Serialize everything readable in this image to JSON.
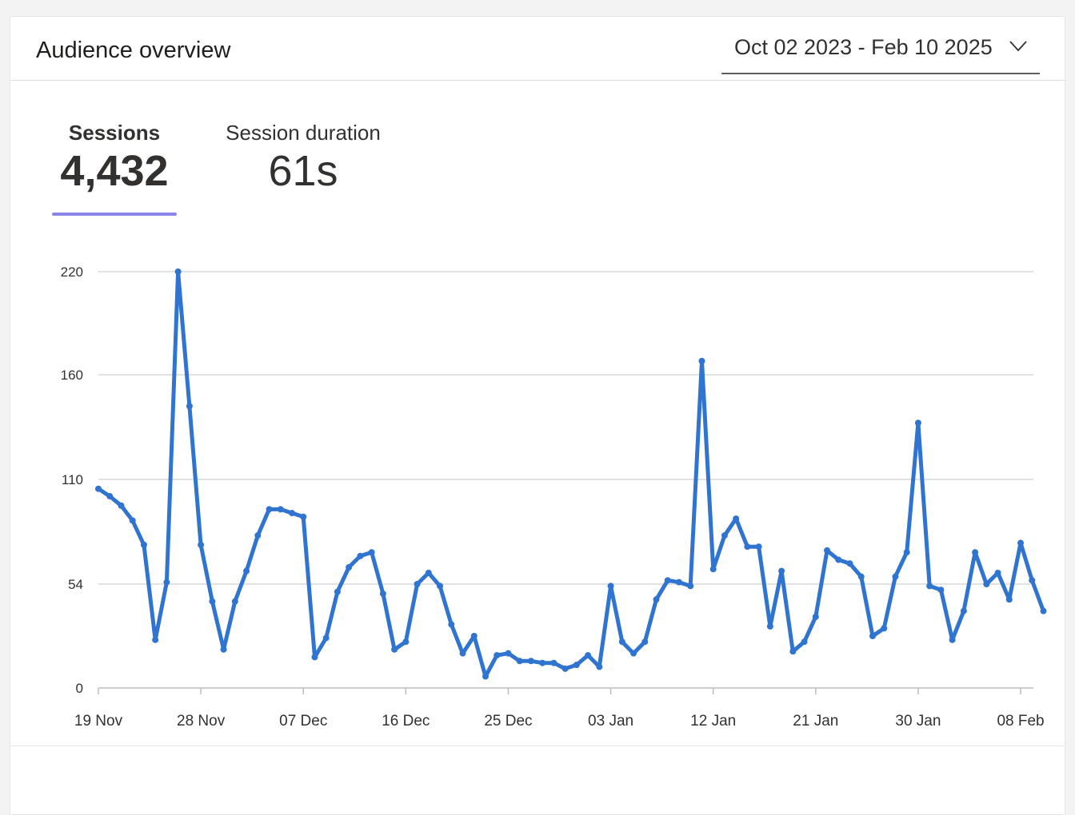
{
  "header": {
    "title": "Audience overview",
    "date_range": "Oct 02 2023 - Feb 10 2025"
  },
  "metrics": {
    "sessions": {
      "label": "Sessions",
      "value": "4,432"
    },
    "duration": {
      "label": "Session duration",
      "value": "61s"
    }
  },
  "colors": {
    "line": "#2f74d0",
    "selected_underline": "#8b87e8",
    "grid": "#d9d9d9"
  },
  "chart_data": {
    "type": "line",
    "title": "",
    "xlabel": "",
    "ylabel": "",
    "y_ticks": [
      0,
      54,
      110,
      160,
      220
    ],
    "x_tick_labels": [
      "19 Nov",
      "28 Nov",
      "07 Dec",
      "16 Dec",
      "25 Dec",
      "03 Jan",
      "12 Jan",
      "21 Jan",
      "30 Jan",
      "08 Feb"
    ],
    "x_tick_day_index": [
      0,
      9,
      18,
      27,
      36,
      45,
      54,
      63,
      72,
      81
    ],
    "ylim": [
      0,
      220
    ],
    "grid": true,
    "series": [
      {
        "name": "",
        "values": [
          105,
          101,
          96,
          88,
          75,
          25,
          55,
          220,
          145,
          75,
          45,
          20,
          45,
          61,
          80,
          94,
          94,
          92,
          90,
          16,
          26,
          50,
          63,
          69,
          71,
          49,
          20,
          24,
          54,
          60,
          53,
          33,
          18,
          27,
          6,
          17,
          18,
          14,
          14,
          13,
          13,
          10,
          12,
          17,
          11,
          53,
          24,
          18,
          24,
          46,
          56,
          55,
          53,
          168,
          62,
          80,
          89,
          74,
          74,
          32,
          61,
          19,
          24,
          37,
          72,
          67,
          65,
          58,
          27,
          31,
          58,
          71,
          137,
          53,
          51,
          25,
          40,
          71,
          54,
          60,
          46,
          76,
          56,
          40
        ]
      }
    ]
  }
}
